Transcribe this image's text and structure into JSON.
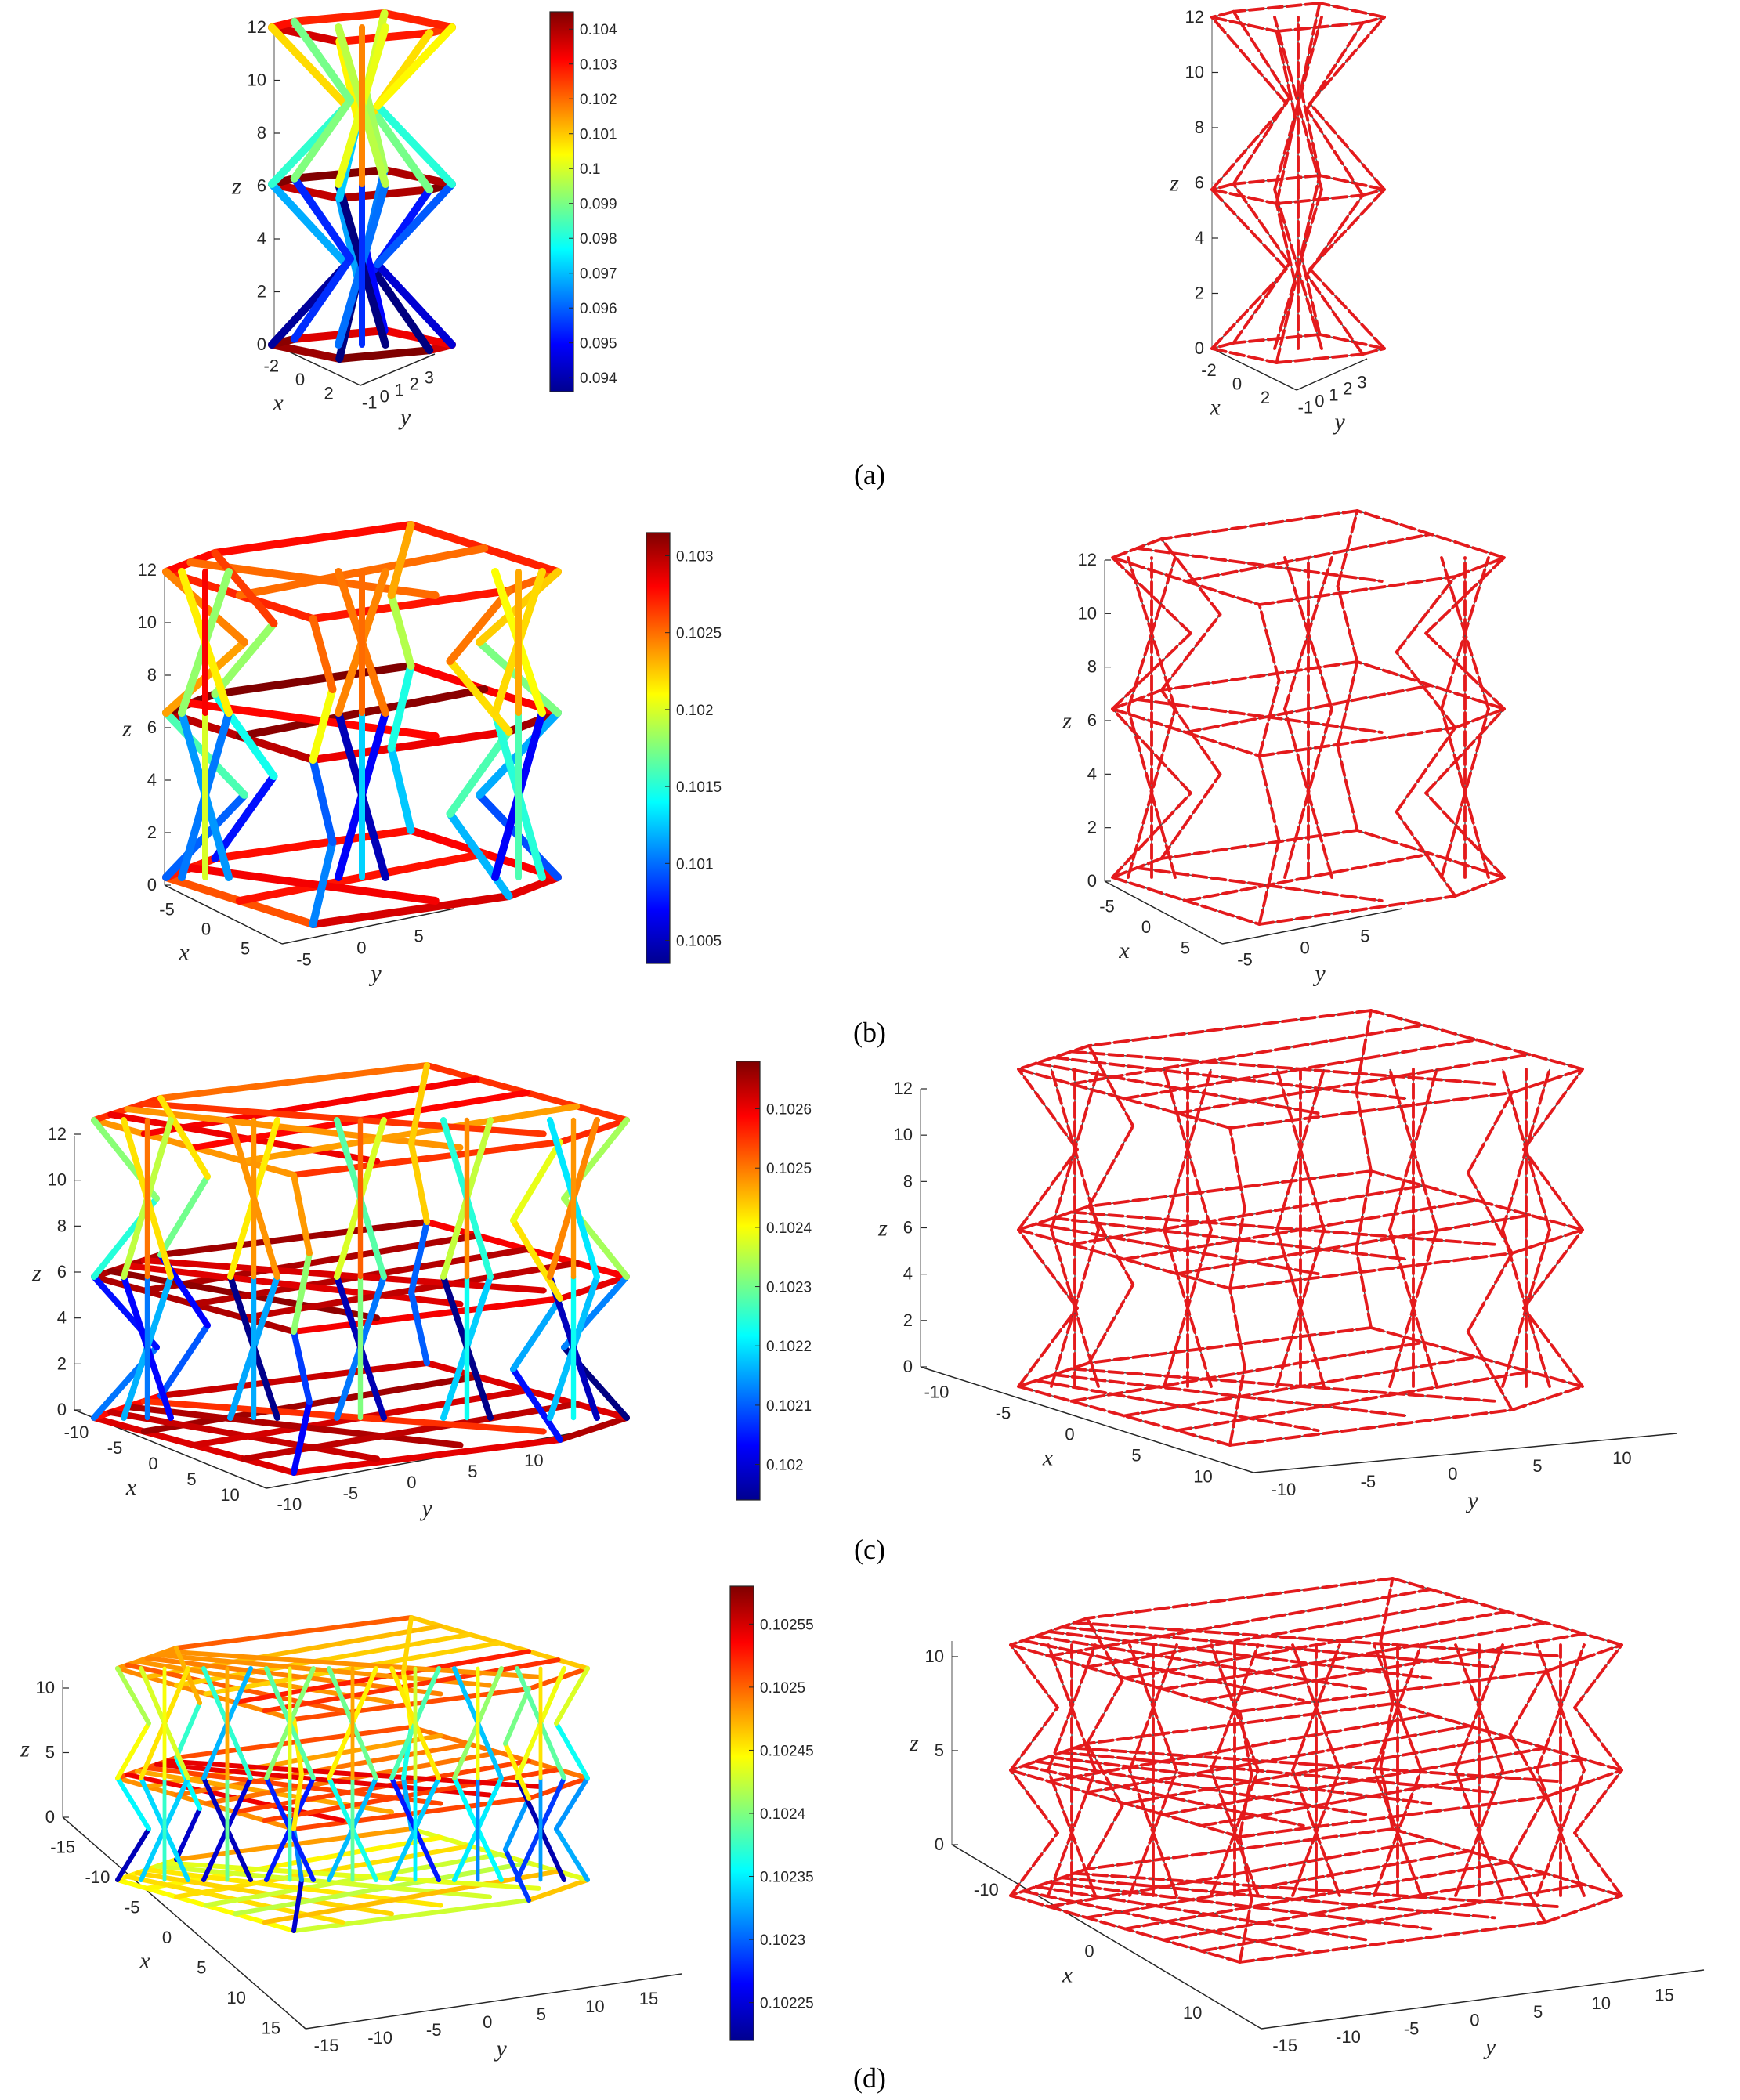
{
  "figure": {
    "captions": [
      "(a)",
      "(b)",
      "(c)",
      "(d)"
    ],
    "colormap": "jet",
    "rows": [
      {
        "id": "a",
        "z_ticks": [
          "0",
          "2",
          "4",
          "6",
          "8",
          "10",
          "12"
        ],
        "x_ticks": [
          "-2",
          "0",
          "2"
        ],
        "y_ticks": [
          "-1",
          "0",
          "1",
          "2",
          "3"
        ],
        "right_x_ticks": [
          "-2",
          "0",
          "2"
        ],
        "right_y_ticks": [
          "-1",
          "0",
          "1",
          "2",
          "3"
        ],
        "colorbar_ticks": [
          "0.104",
          "0.103",
          "0.102",
          "0.101",
          "0.1",
          "0.099",
          "0.098",
          "0.097",
          "0.096",
          "0.095",
          "0.094"
        ],
        "colorbar_range": [
          0.0936,
          0.1045
        ]
      },
      {
        "id": "b",
        "z_ticks": [
          "0",
          "2",
          "4",
          "6",
          "8",
          "10",
          "12"
        ],
        "x_ticks": [
          "-5",
          "0",
          "5"
        ],
        "y_ticks": [
          "-5",
          "0",
          "5"
        ],
        "right_x_ticks": [
          "-5",
          "0",
          "5"
        ],
        "right_y_ticks": [
          "-5",
          "0",
          "5"
        ],
        "colorbar_ticks": [
          "0.103",
          "0.1025",
          "0.102",
          "0.1015",
          "0.101",
          "0.1005"
        ],
        "colorbar_range": [
          0.10035,
          0.10315
        ]
      },
      {
        "id": "c",
        "z_ticks": [
          "0",
          "2",
          "4",
          "6",
          "8",
          "10",
          "12"
        ],
        "x_ticks": [
          "-10",
          "-5",
          "0",
          "5",
          "10"
        ],
        "y_ticks": [
          "-10",
          "-5",
          "0",
          "5",
          "10"
        ],
        "right_x_ticks": [
          "-10",
          "-5",
          "0",
          "5",
          "10"
        ],
        "right_y_ticks": [
          "-10",
          "-5",
          "0",
          "5",
          "10"
        ],
        "colorbar_ticks": [
          "0.1026",
          "0.1025",
          "0.1024",
          "0.1023",
          "0.1022",
          "0.1021",
          "0.102"
        ],
        "colorbar_range": [
          0.10194,
          0.10268
        ]
      },
      {
        "id": "d",
        "z_ticks": [
          "0",
          "5",
          "10"
        ],
        "x_ticks": [
          "-15",
          "-10",
          "-5",
          "0",
          "5",
          "10",
          "15"
        ],
        "y_ticks": [
          "-15",
          "-10",
          "-5",
          "0",
          "5",
          "10",
          "15"
        ],
        "right_z_ticks": [
          "0",
          "5",
          "10"
        ],
        "right_x_ticks": [
          "-10",
          "0",
          "10"
        ],
        "right_y_ticks": [
          "-15",
          "-10",
          "-5",
          "0",
          "5",
          "10",
          "15"
        ],
        "colorbar_ticks": [
          "0.10255",
          "0.1025",
          "0.10245",
          "0.1024",
          "0.10235",
          "0.1023",
          "0.10225"
        ],
        "colorbar_range": [
          0.10222,
          0.10258
        ]
      }
    ],
    "axis_labels": {
      "x": "x",
      "y": "y",
      "z": "z"
    },
    "colors": {
      "undeformed": "#7f7f7f",
      "deformed": "#e41a1c",
      "axes": "#262626",
      "caption_text": "#000000"
    }
  }
}
